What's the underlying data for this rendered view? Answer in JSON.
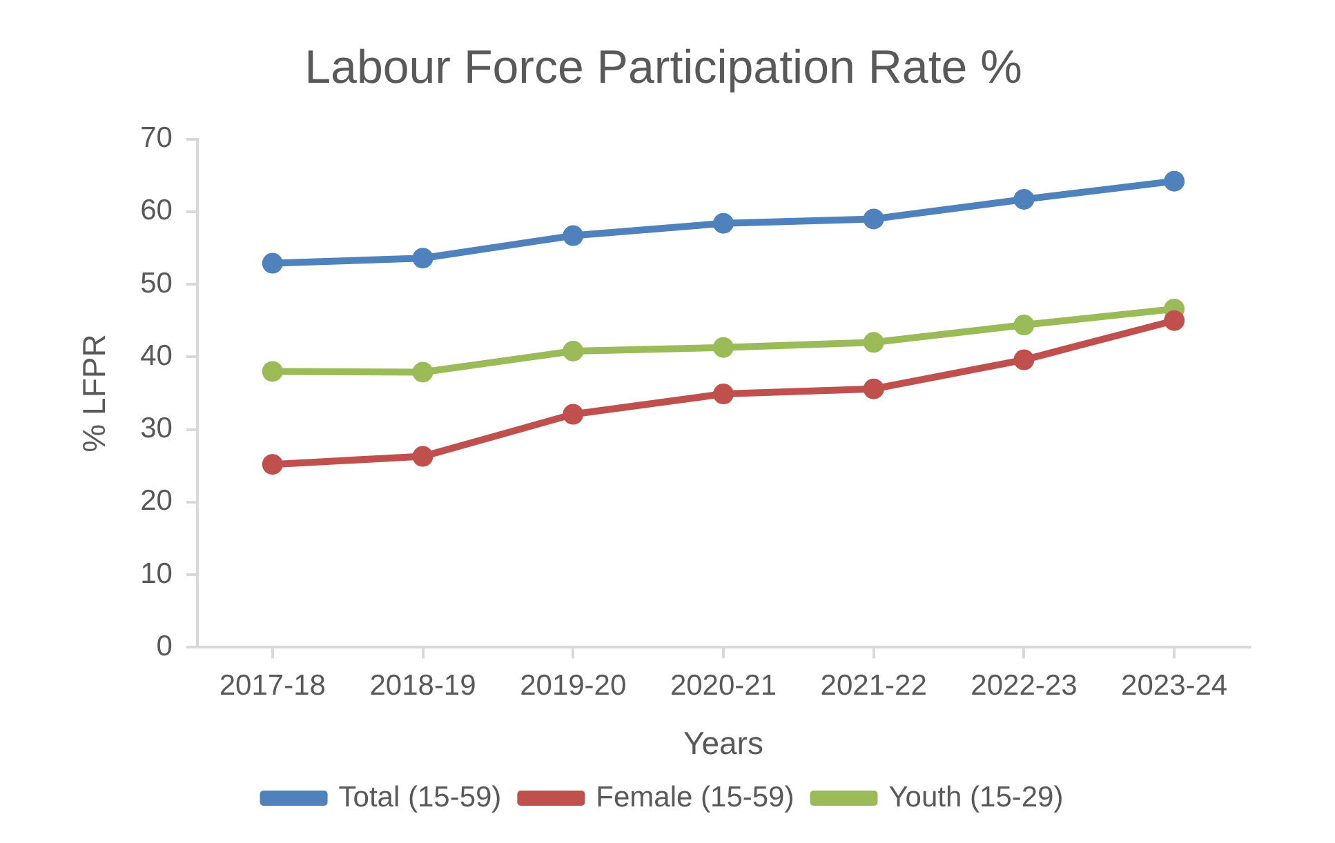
{
  "chart_data": {
    "type": "line",
    "title": "Labour Force Participation Rate %",
    "xlabel": "Years",
    "ylabel": "% LFPR",
    "categories": [
      "2017-18",
      "2018-19",
      "2019-20",
      "2020-21",
      "2021-22",
      "2022-23",
      "2023-24"
    ],
    "series": [
      {
        "name": "Total (15-59)",
        "color": "#4f81bd",
        "values": [
          52.9,
          53.6,
          56.7,
          58.4,
          59.0,
          61.7,
          64.2
        ]
      },
      {
        "name": "Female (15-59)",
        "color": "#c0504d",
        "values": [
          25.2,
          26.3,
          32.1,
          34.9,
          35.6,
          39.6,
          45.0
        ]
      },
      {
        "name": "Youth (15-29)",
        "color": "#9bbb59",
        "values": [
          38.0,
          37.9,
          40.8,
          41.3,
          42.0,
          44.4,
          46.6
        ]
      }
    ],
    "ylim": [
      0,
      70
    ],
    "yticks": [
      0,
      10,
      20,
      30,
      40,
      50,
      60,
      70
    ],
    "grid": false,
    "legend": "bottom",
    "marker": "circle",
    "line_style": "solid"
  }
}
